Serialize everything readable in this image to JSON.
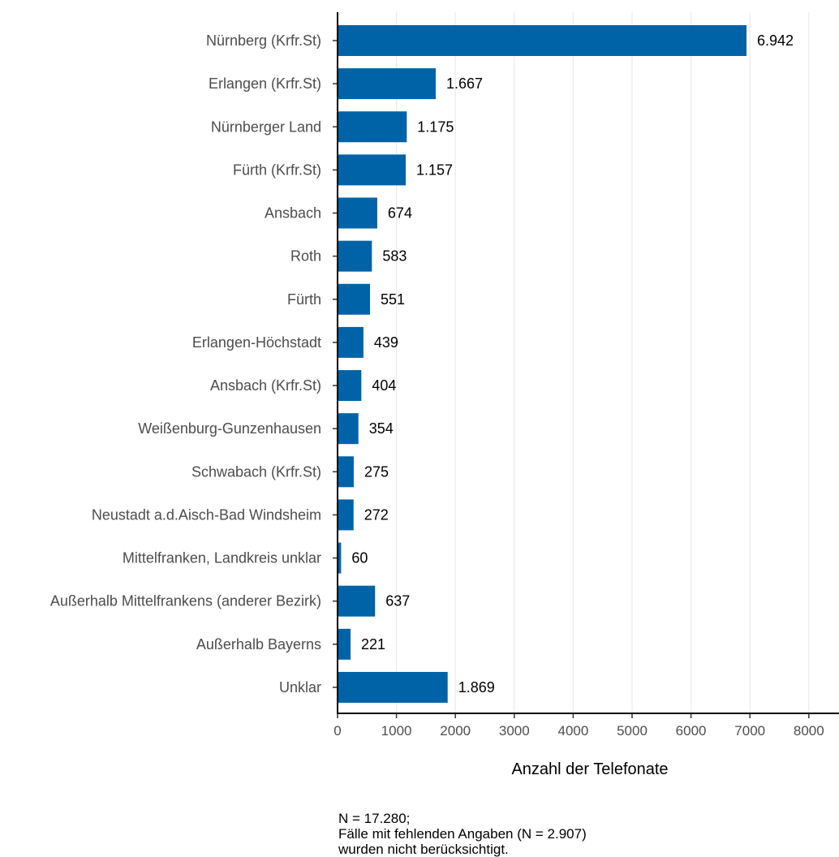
{
  "chart_data": {
    "type": "bar",
    "orientation": "horizontal",
    "categories": [
      "Nürnberg (Krfr.St)",
      "Erlangen (Krfr.St)",
      "Nürnberger Land",
      "Fürth (Krfr.St)",
      "Ansbach",
      "Roth",
      "Fürth",
      "Erlangen-Höchstadt",
      "Ansbach (Krfr.St)",
      "Weißenburg-Gunzenhausen",
      "Schwabach (Krfr.St)",
      "Neustadt a.d.Aisch-Bad Windsheim",
      "Mittelfranken, Landkreis unklar",
      "Außerhalb Mittelfrankens (anderer Bezirk)",
      "Außerhalb Bayerns",
      "Unklar"
    ],
    "values": [
      6942,
      1667,
      1175,
      1157,
      674,
      583,
      551,
      439,
      404,
      354,
      275,
      272,
      60,
      637,
      221,
      1869
    ],
    "value_labels": [
      "6.942",
      "1.667",
      "1.175",
      "1.157",
      "674",
      "583",
      "551",
      "439",
      "404",
      "354",
      "275",
      "272",
      "60",
      "637",
      "221",
      "1.869"
    ],
    "xlabel": "Anzahl der Telefonate",
    "ylabel": "",
    "xlim": [
      0,
      8600
    ],
    "xticks": [
      0,
      1000,
      2000,
      3000,
      4000,
      5000,
      6000,
      7000,
      8000
    ],
    "xtick_labels": [
      "0",
      "1000",
      "2000",
      "3000",
      "4000",
      "5000",
      "6000",
      "7000",
      "8000"
    ],
    "grid": "vertical major gridlines",
    "legend": "none",
    "bar_color": "#0063a8",
    "grid_color": "#ebebeb",
    "note": [
      "N = 17.280;",
      "Fälle mit fehlenden Angaben (N = 2.907)",
      "wurden nicht berücksichtigt."
    ]
  }
}
